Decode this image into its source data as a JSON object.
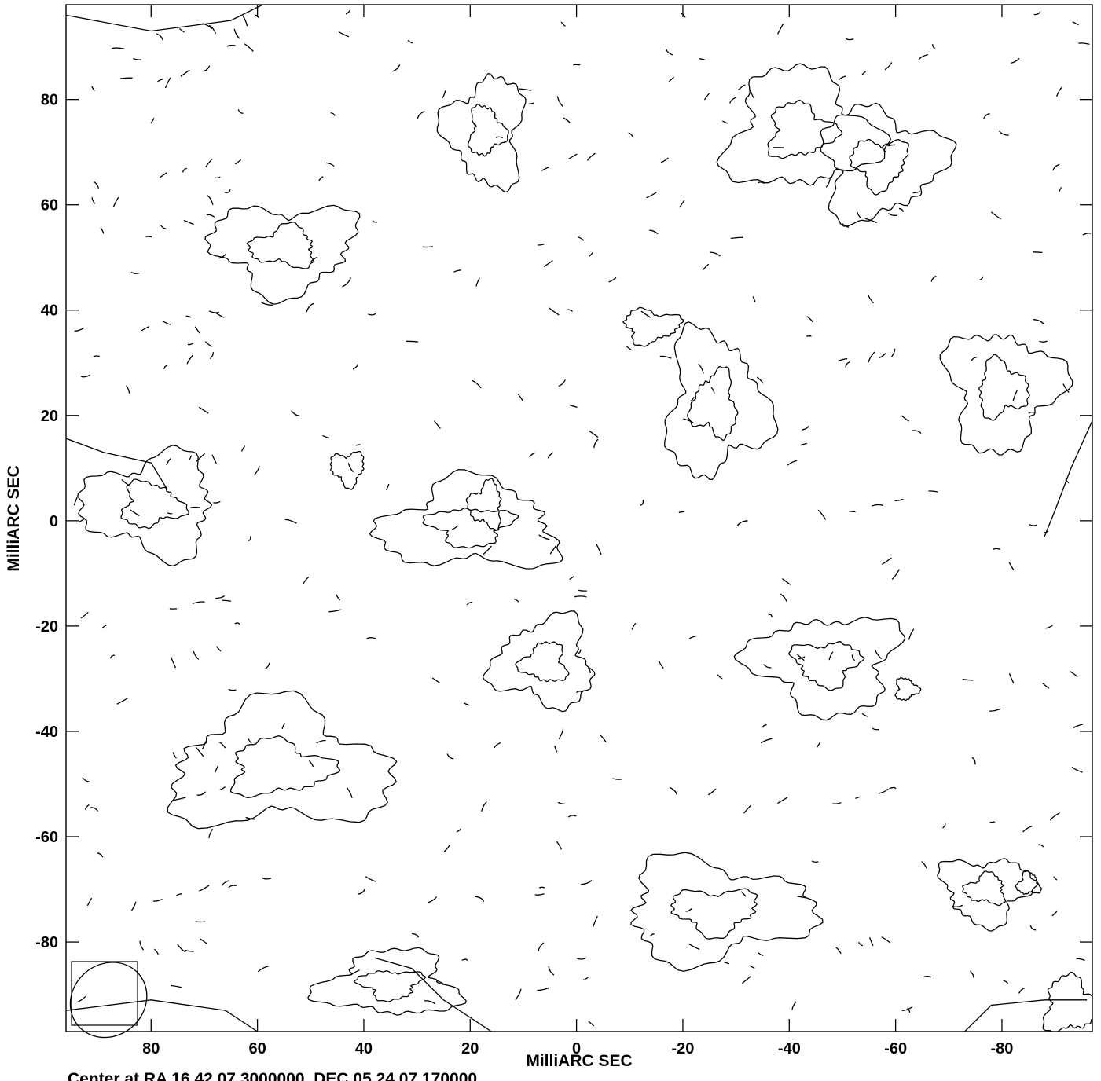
{
  "chart_data": {
    "type": "contour",
    "xlabel": "MilliARC SEC",
    "ylabel": "MilliARC SEC",
    "footer": "Center at RA 16 42 07.3000000, DEC 05 24 07.170000",
    "xlim": [
      96,
      -97
    ],
    "ylim": [
      -97,
      98
    ],
    "x_ticks": [
      80,
      60,
      40,
      20,
      0,
      -20,
      -40,
      -60,
      -80
    ],
    "y_ticks": [
      80,
      60,
      40,
      20,
      0,
      -20,
      -40,
      -60,
      -80
    ],
    "x_tick_labels": [
      "80",
      "60",
      "40",
      "20",
      "0",
      "-20",
      "-40",
      "-60",
      "-80"
    ],
    "y_tick_labels": [
      "80",
      "60",
      "40",
      "20",
      "0",
      "-20",
      "-40",
      "-60",
      "-80"
    ],
    "grid": false,
    "line_color": "#000000",
    "beam": {
      "center": [
        88,
        -91
      ],
      "major_axis": 7.5,
      "minor_axis": 6.8,
      "position_angle_deg": 40
    },
    "regions": [
      {
        "name": "island",
        "center": [
          -42,
          74
        ],
        "radii": [
          13,
          11
        ]
      },
      {
        "name": "island",
        "center": [
          -57,
          68
        ],
        "radii": [
          11,
          10
        ]
      },
      {
        "name": "island",
        "center": [
          55,
          52
        ],
        "radii": [
          13,
          8
        ]
      },
      {
        "name": "island",
        "center": [
          80,
          3
        ],
        "radii": [
          12,
          9
        ]
      },
      {
        "name": "island",
        "center": [
          20,
          -1
        ],
        "radii": [
          16,
          8
        ]
      },
      {
        "name": "island",
        "center": [
          -26,
          22
        ],
        "radii": [
          9,
          13
        ]
      },
      {
        "name": "island",
        "center": [
          -80,
          25
        ],
        "radii": [
          10,
          11
        ]
      },
      {
        "name": "island",
        "center": [
          -47,
          -27
        ],
        "radii": [
          13,
          9
        ]
      },
      {
        "name": "island",
        "center": [
          6,
          -27
        ],
        "radii": [
          9,
          8
        ]
      },
      {
        "name": "island",
        "center": [
          56,
          -47
        ],
        "radii": [
          20,
          11
        ]
      },
      {
        "name": "island",
        "center": [
          -26,
          -74
        ],
        "radii": [
          17,
          9
        ]
      },
      {
        "name": "island",
        "center": [
          -77,
          -70
        ],
        "radii": [
          8,
          6
        ]
      },
      {
        "name": "island",
        "center": [
          17,
          74
        ],
        "radii": [
          7,
          10
        ]
      },
      {
        "name": "island",
        "center": [
          35,
          -88
        ],
        "radii": [
          12,
          6
        ]
      },
      {
        "name": "island",
        "center": [
          -93,
          -92
        ],
        "radii": [
          5,
          5
        ]
      },
      {
        "name": "island",
        "center": [
          -14,
          37
        ],
        "radii": [
          5,
          3
        ]
      },
      {
        "name": "island",
        "center": [
          43,
          10
        ],
        "radii": [
          3,
          3
        ]
      },
      {
        "name": "island",
        "center": [
          17,
          3
        ],
        "radii": [
          3,
          4
        ]
      },
      {
        "name": "island",
        "center": [
          -85,
          -69
        ],
        "radii": [
          2,
          2
        ]
      },
      {
        "name": "island",
        "center": [
          -62,
          -32
        ],
        "radii": [
          2,
          2
        ]
      }
    ],
    "edge_contours": [
      {
        "name": "top-left-edge",
        "points": [
          [
            96,
            96
          ],
          [
            80,
            93
          ],
          [
            65,
            95
          ],
          [
            59,
            98
          ]
        ]
      },
      {
        "name": "left-edge",
        "points": [
          [
            97,
            16
          ],
          [
            89,
            13
          ],
          [
            80,
            11
          ],
          [
            77,
            6
          ]
        ]
      },
      {
        "name": "bottom-left-edge",
        "points": [
          [
            96,
            -93
          ],
          [
            80,
            -91
          ],
          [
            66,
            -93
          ],
          [
            60,
            -97
          ]
        ]
      },
      {
        "name": "bottom-center-edge",
        "points": [
          [
            16,
            -97
          ],
          [
            25,
            -91
          ],
          [
            31,
            -85
          ],
          [
            38,
            -83
          ]
        ]
      },
      {
        "name": "bottom-right-edge",
        "points": [
          [
            -73,
            -97
          ],
          [
            -78,
            -92
          ],
          [
            -88,
            -91
          ],
          [
            -96,
            -91
          ]
        ]
      },
      {
        "name": "right-edge",
        "points": [
          [
            -97,
            19
          ],
          [
            -93,
            10
          ],
          [
            -90,
            2
          ],
          [
            -88,
            -3
          ]
        ]
      }
    ]
  }
}
